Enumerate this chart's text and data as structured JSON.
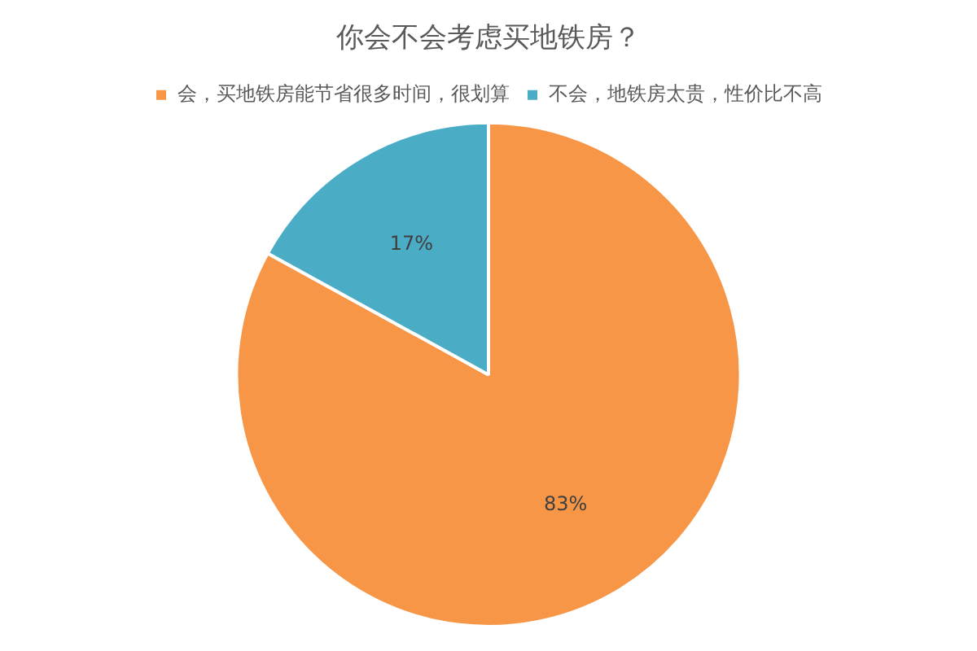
{
  "chart_data": {
    "type": "pie",
    "title": "你会不会考虑买地铁房？",
    "categories": [
      "会，买地铁房能节省很多时间，很划算",
      "不会，地铁房太贵，性价比不高"
    ],
    "values": [
      83,
      17
    ],
    "colors": [
      "#f79646",
      "#4bacc6"
    ],
    "value_labels": [
      "83%",
      "17%"
    ],
    "legend": "top"
  }
}
